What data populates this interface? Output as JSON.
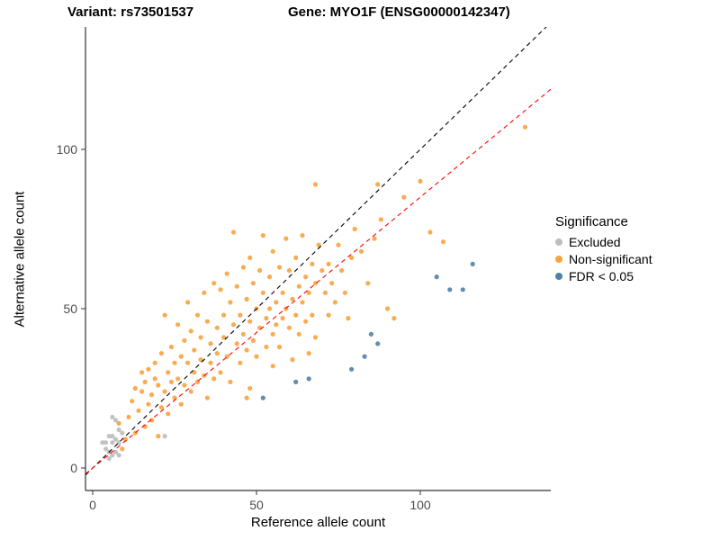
{
  "header": {
    "variant_title": "Variant: rs73501537",
    "gene_title": "Gene: MYO1F (ENSG00000142347)"
  },
  "chart_data": {
    "type": "scatter",
    "xlabel": "Reference allele count",
    "ylabel": "Alternative allele count",
    "xlim": [
      -2,
      140
    ],
    "ylim": [
      -7,
      138
    ],
    "x_ticks": [
      0,
      50,
      100
    ],
    "y_ticks": [
      0,
      50,
      100
    ],
    "grid": false,
    "legend": {
      "title": "Significance",
      "position": "right",
      "entries": [
        {
          "label": "Excluded",
          "color": "#BDBDBD"
        },
        {
          "label": "Non-significant",
          "color": "#F8A33C"
        },
        {
          "label": "FDR < 0.05",
          "color": "#4F81A8"
        }
      ]
    },
    "lines": [
      {
        "name": "identity",
        "slope": 1,
        "intercept": 0,
        "color": "#000000",
        "dash": "5,4"
      },
      {
        "name": "fit",
        "slope": 0.85,
        "intercept": 0,
        "color": "#FF0000",
        "dash": "5,4"
      }
    ],
    "series": [
      {
        "name": "Excluded",
        "color": "#BDBDBD",
        "points": [
          [
            3,
            8
          ],
          [
            4,
            6
          ],
          [
            4,
            8
          ],
          [
            5,
            3
          ],
          [
            5,
            5
          ],
          [
            5,
            10
          ],
          [
            6,
            4
          ],
          [
            6,
            8
          ],
          [
            6,
            10
          ],
          [
            6,
            16
          ],
          [
            7,
            5
          ],
          [
            7,
            9
          ],
          [
            7,
            15
          ],
          [
            8,
            4
          ],
          [
            8,
            8
          ],
          [
            8,
            12
          ],
          [
            9,
            11
          ],
          [
            22,
            10
          ]
        ]
      },
      {
        "name": "Non-significant",
        "color": "#F8A33C",
        "points": [
          [
            8,
            14
          ],
          [
            9,
            6
          ],
          [
            10,
            9
          ],
          [
            11,
            16
          ],
          [
            12,
            21
          ],
          [
            13,
            11
          ],
          [
            13,
            25
          ],
          [
            14,
            18
          ],
          [
            15,
            24
          ],
          [
            15,
            30
          ],
          [
            16,
            13
          ],
          [
            16,
            27
          ],
          [
            17,
            20
          ],
          [
            17,
            31
          ],
          [
            18,
            15
          ],
          [
            18,
            23
          ],
          [
            19,
            28
          ],
          [
            19,
            33
          ],
          [
            20,
            10
          ],
          [
            20,
            26
          ],
          [
            21,
            19
          ],
          [
            21,
            36
          ],
          [
            22,
            24
          ],
          [
            22,
            48
          ],
          [
            23,
            17
          ],
          [
            23,
            30
          ],
          [
            24,
            27
          ],
          [
            24,
            38
          ],
          [
            25,
            22
          ],
          [
            25,
            33
          ],
          [
            26,
            28
          ],
          [
            26,
            45
          ],
          [
            27,
            20
          ],
          [
            27,
            35
          ],
          [
            28,
            26
          ],
          [
            28,
            40
          ],
          [
            29,
            33
          ],
          [
            29,
            52
          ],
          [
            30,
            24
          ],
          [
            30,
            43
          ],
          [
            31,
            30
          ],
          [
            31,
            37
          ],
          [
            32,
            27
          ],
          [
            32,
            48
          ],
          [
            33,
            34
          ],
          [
            33,
            41
          ],
          [
            34,
            29
          ],
          [
            34,
            55
          ],
          [
            35,
            22
          ],
          [
            35,
            46
          ],
          [
            36,
            33
          ],
          [
            36,
            39
          ],
          [
            37,
            28
          ],
          [
            37,
            58
          ],
          [
            38,
            36
          ],
          [
            38,
            44
          ],
          [
            39,
            30
          ],
          [
            39,
            56
          ],
          [
            40,
            41
          ],
          [
            40,
            48
          ],
          [
            41,
            35
          ],
          [
            41,
            61
          ],
          [
            42,
            27
          ],
          [
            42,
            52
          ],
          [
            43,
            45
          ],
          [
            43,
            74
          ],
          [
            44,
            39
          ],
          [
            44,
            57
          ],
          [
            45,
            33
          ],
          [
            45,
            48
          ],
          [
            46,
            42
          ],
          [
            46,
            63
          ],
          [
            47,
            22
          ],
          [
            47,
            37
          ],
          [
            47,
            53
          ],
          [
            48,
            25
          ],
          [
            48,
            46
          ],
          [
            48,
            66
          ],
          [
            49,
            40
          ],
          [
            49,
            58
          ],
          [
            50,
            35
          ],
          [
            50,
            50
          ],
          [
            51,
            44
          ],
          [
            51,
            62
          ],
          [
            52,
            55
          ],
          [
            52,
            73
          ],
          [
            53,
            38
          ],
          [
            53,
            47
          ],
          [
            54,
            50
          ],
          [
            54,
            60
          ],
          [
            55,
            32
          ],
          [
            55,
            42
          ],
          [
            55,
            68
          ],
          [
            56,
            45
          ],
          [
            56,
            52
          ],
          [
            57,
            38
          ],
          [
            57,
            63
          ],
          [
            58,
            47
          ],
          [
            58,
            55
          ],
          [
            59,
            50
          ],
          [
            59,
            72
          ],
          [
            60,
            44
          ],
          [
            60,
            62
          ],
          [
            61,
            34
          ],
          [
            61,
            53
          ],
          [
            62,
            48
          ],
          [
            62,
            66
          ],
          [
            63,
            42
          ],
          [
            63,
            57
          ],
          [
            64,
            52
          ],
          [
            64,
            73
          ],
          [
            65,
            46
          ],
          [
            65,
            60
          ],
          [
            66,
            36
          ],
          [
            66,
            55
          ],
          [
            67,
            48
          ],
          [
            67,
            64
          ],
          [
            68,
            41
          ],
          [
            68,
            58
          ],
          [
            68,
            89
          ],
          [
            69,
            70
          ],
          [
            70,
            62
          ],
          [
            71,
            55
          ],
          [
            72,
            48
          ],
          [
            72,
            64
          ],
          [
            73,
            58
          ],
          [
            74,
            52
          ],
          [
            75,
            70
          ],
          [
            76,
            62
          ],
          [
            77,
            55
          ],
          [
            78,
            47
          ],
          [
            79,
            66
          ],
          [
            80,
            75
          ],
          [
            82,
            68
          ],
          [
            84,
            58
          ],
          [
            86,
            72
          ],
          [
            87,
            89
          ],
          [
            88,
            78
          ],
          [
            90,
            50
          ],
          [
            92,
            47
          ],
          [
            95,
            85
          ],
          [
            100,
            90
          ],
          [
            103,
            74
          ],
          [
            107,
            71
          ],
          [
            132,
            107
          ]
        ]
      },
      {
        "name": "FDR < 0.05",
        "color": "#4F81A8",
        "points": [
          [
            52,
            22
          ],
          [
            62,
            27
          ],
          [
            66,
            28
          ],
          [
            79,
            31
          ],
          [
            83,
            35
          ],
          [
            85,
            42
          ],
          [
            87,
            39
          ],
          [
            105,
            60
          ],
          [
            109,
            56
          ],
          [
            113,
            56
          ],
          [
            116,
            64
          ]
        ]
      }
    ]
  }
}
